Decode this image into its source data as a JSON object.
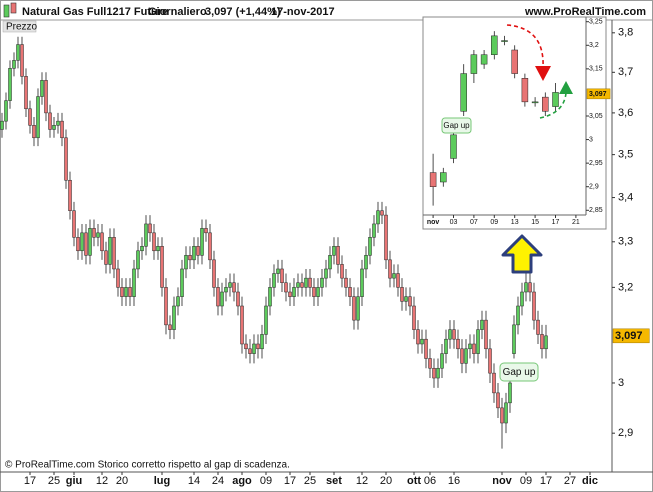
{
  "chart_data": [
    {
      "type": "candlestick",
      "title": "Natural Gas Full1217 Future",
      "period": "Giornaliero",
      "quote": "3,097 (+1,44%)",
      "date": "17-nov-2017",
      "source": "www.ProRealTime.com",
      "panel_label": "Prezzo",
      "footer": "© ProRealTime.com  Storico corretto rispetto al gap di scadenza.",
      "annotation": "Gap up",
      "log_scale": true,
      "grid": false,
      "up_color": "#5ccb5c",
      "down_color": "#e87474",
      "ylim": [
        2.825,
        3.833
      ],
      "yticks": [
        {
          "value": 3.8,
          "label": "3,8"
        },
        {
          "value": 3.7,
          "label": "3,7"
        },
        {
          "value": 3.6,
          "label": "3,6"
        },
        {
          "value": 3.5,
          "label": "3,5"
        },
        {
          "value": 3.4,
          "label": "3,4"
        },
        {
          "value": 3.3,
          "label": "3,3"
        },
        {
          "value": 3.2,
          "label": "3,2"
        },
        3,
        {
          "value": 2.9,
          "label": "2,9"
        }
      ],
      "last_price": {
        "value": 3.097,
        "label": "3,097"
      },
      "categories": [
        null,
        null,
        null,
        null,
        null,
        null,
        null,
        "17",
        null,
        null,
        null,
        null,
        null,
        "25",
        null,
        null,
        null,
        null,
        "giu",
        null,
        null,
        null,
        null,
        null,
        null,
        "12",
        null,
        null,
        null,
        null,
        "20",
        null,
        null,
        null,
        null,
        null,
        null,
        null,
        null,
        null,
        "lug",
        null,
        null,
        null,
        null,
        null,
        null,
        null,
        "14",
        null,
        null,
        null,
        null,
        null,
        "24",
        null,
        null,
        null,
        null,
        null,
        "ago",
        null,
        null,
        null,
        null,
        null,
        "09",
        null,
        null,
        null,
        null,
        null,
        "17",
        null,
        null,
        null,
        null,
        "25",
        null,
        null,
        null,
        null,
        null,
        "set",
        null,
        null,
        null,
        null,
        null,
        null,
        "12",
        null,
        null,
        null,
        null,
        null,
        "20",
        null,
        null,
        null,
        null,
        null,
        null,
        "ott",
        null,
        null,
        null,
        "06",
        null,
        null,
        null,
        null,
        null,
        "16",
        null,
        null,
        null,
        null,
        null,
        null,
        null,
        null,
        null,
        null,
        null,
        "nov",
        null,
        null,
        null,
        null,
        null,
        "09",
        null,
        null,
        null,
        null,
        "17",
        null,
        null,
        null,
        null,
        null,
        "27",
        null,
        null,
        null,
        null,
        "dic",
        null,
        null,
        null,
        null,
        null
      ],
      "open": [
        3.56,
        3.58,
        3.63,
        3.71,
        3.73,
        3.77,
        3.69,
        3.61,
        3.57,
        3.54,
        3.64,
        3.68,
        3.6,
        3.56,
        3.57,
        3.58,
        3.54,
        3.44,
        3.37,
        3.31,
        3.28,
        3.32,
        3.27,
        3.33,
        3.31,
        3.32,
        3.28,
        3.25,
        3.31,
        3.24,
        3.2,
        3.18,
        3.2,
        3.18,
        3.24,
        3.28,
        3.29,
        3.34,
        3.32,
        3.28,
        3.29,
        3.2,
        3.12,
        3.11,
        3.16,
        3.18,
        3.24,
        3.27,
        3.26,
        3.29,
        3.27,
        3.33,
        3.32,
        3.26,
        3.2,
        3.16,
        3.19,
        3.2,
        3.21,
        3.19,
        3.16,
        3.08,
        3.07,
        3.06,
        3.08,
        3.07,
        3.1,
        3.16,
        3.2,
        3.23,
        3.24,
        3.21,
        3.19,
        3.18,
        3.2,
        3.21,
        3.2,
        3.22,
        3.2,
        3.18,
        3.2,
        3.22,
        3.24,
        3.27,
        3.29,
        3.25,
        3.22,
        3.2,
        3.18,
        3.13,
        3.18,
        3.24,
        3.27,
        3.31,
        3.34,
        3.37,
        3.36,
        3.26,
        3.22,
        3.23,
        3.2,
        3.17,
        3.18,
        3.16,
        3.11,
        3.08,
        3.09,
        3.05,
        3.03,
        3.01,
        3.03,
        3.06,
        3.09,
        3.11,
        3.09,
        3.07,
        3.04,
        3.07,
        3.08,
        3.06,
        3.11,
        3.13,
        3.07,
        3.02,
        2.98,
        2.95,
        2.92,
        2.96,
        3.06,
        3.12,
        3.16,
        3.19,
        3.21,
        3.19,
        3.13,
        3.1,
        3.07,
        null,
        null,
        null,
        null,
        null,
        null,
        null,
        null,
        null,
        null,
        null,
        null,
        null,
        null,
        null,
        null
      ],
      "high": [
        3.6,
        3.65,
        3.73,
        3.75,
        3.79,
        3.79,
        3.71,
        3.63,
        3.59,
        3.66,
        3.7,
        3.7,
        3.62,
        3.59,
        3.6,
        3.6,
        3.56,
        3.46,
        3.39,
        3.33,
        3.34,
        3.34,
        3.35,
        3.35,
        3.34,
        3.34,
        3.3,
        3.33,
        3.33,
        3.26,
        3.22,
        3.22,
        3.22,
        3.26,
        3.3,
        3.31,
        3.36,
        3.36,
        3.34,
        3.31,
        3.31,
        3.22,
        3.14,
        3.18,
        3.2,
        3.26,
        3.29,
        3.29,
        3.31,
        3.31,
        3.35,
        3.35,
        3.34,
        3.28,
        3.22,
        3.21,
        3.22,
        3.23,
        3.23,
        3.21,
        3.18,
        3.1,
        3.09,
        3.1,
        3.1,
        3.12,
        3.18,
        3.22,
        3.25,
        3.26,
        3.26,
        3.23,
        3.21,
        3.22,
        3.23,
        3.23,
        3.24,
        3.24,
        3.22,
        3.22,
        3.24,
        3.26,
        3.29,
        3.31,
        3.31,
        3.27,
        3.24,
        3.22,
        3.2,
        3.2,
        3.26,
        3.29,
        3.33,
        3.36,
        3.39,
        3.39,
        3.38,
        3.28,
        3.25,
        3.25,
        3.22,
        3.2,
        3.2,
        3.18,
        3.13,
        3.11,
        3.11,
        3.07,
        3.05,
        3.05,
        3.08,
        3.11,
        3.13,
        3.13,
        3.11,
        3.09,
        3.09,
        3.1,
        3.1,
        3.13,
        3.15,
        3.15,
        3.09,
        3.04,
        3.0,
        2.97,
        2.98,
        3.02,
        3.14,
        3.18,
        3.21,
        3.23,
        3.23,
        3.21,
        3.15,
        3.12,
        3.12,
        null,
        null,
        null,
        null,
        null,
        null,
        null,
        null,
        null,
        null,
        null,
        null,
        null,
        null,
        null,
        null
      ],
      "low": [
        3.54,
        3.56,
        3.61,
        3.69,
        3.71,
        3.67,
        3.59,
        3.55,
        3.52,
        3.52,
        3.62,
        3.58,
        3.54,
        3.54,
        3.55,
        3.52,
        3.42,
        3.35,
        3.29,
        3.26,
        3.26,
        3.25,
        3.25,
        3.29,
        3.29,
        3.26,
        3.23,
        3.23,
        3.22,
        3.18,
        3.16,
        3.16,
        3.16,
        3.16,
        3.22,
        3.26,
        3.27,
        3.3,
        3.26,
        3.26,
        3.18,
        3.1,
        3.09,
        3.09,
        3.14,
        3.16,
        3.22,
        3.24,
        3.24,
        3.25,
        3.25,
        3.3,
        3.24,
        3.18,
        3.14,
        3.14,
        3.17,
        3.18,
        3.17,
        3.14,
        3.06,
        3.05,
        3.04,
        3.04,
        3.05,
        3.05,
        3.08,
        3.14,
        3.18,
        3.21,
        3.19,
        3.17,
        3.16,
        3.16,
        3.18,
        3.18,
        3.18,
        3.18,
        3.16,
        3.16,
        3.18,
        3.2,
        3.22,
        3.25,
        3.23,
        3.2,
        3.18,
        3.16,
        3.11,
        3.11,
        3.16,
        3.22,
        3.25,
        3.29,
        3.32,
        3.34,
        3.24,
        3.2,
        3.2,
        3.18,
        3.15,
        3.15,
        3.14,
        3.09,
        3.06,
        3.06,
        3.03,
        3.01,
        2.99,
        2.99,
        3.01,
        3.04,
        3.07,
        3.07,
        3.05,
        3.02,
        3.02,
        3.05,
        3.04,
        3.04,
        3.09,
        3.05,
        3.0,
        2.96,
        2.93,
        2.87,
        2.9,
        2.94,
        3.05,
        3.1,
        3.14,
        3.17,
        3.17,
        3.11,
        3.08,
        3.05,
        3.05,
        null,
        null,
        null,
        null,
        null,
        null,
        null,
        null,
        null,
        null,
        null,
        null,
        null,
        null,
        null,
        null
      ],
      "close": [
        3.58,
        3.63,
        3.71,
        3.73,
        3.77,
        3.69,
        3.61,
        3.57,
        3.54,
        3.64,
        3.68,
        3.6,
        3.56,
        3.57,
        3.58,
        3.54,
        3.44,
        3.37,
        3.31,
        3.28,
        3.32,
        3.27,
        3.33,
        3.31,
        3.32,
        3.28,
        3.25,
        3.31,
        3.24,
        3.2,
        3.18,
        3.2,
        3.18,
        3.24,
        3.28,
        3.29,
        3.34,
        3.32,
        3.28,
        3.29,
        3.2,
        3.12,
        3.11,
        3.16,
        3.18,
        3.24,
        3.27,
        3.26,
        3.29,
        3.27,
        3.33,
        3.32,
        3.26,
        3.2,
        3.16,
        3.19,
        3.2,
        3.21,
        3.19,
        3.16,
        3.08,
        3.07,
        3.06,
        3.08,
        3.07,
        3.1,
        3.16,
        3.2,
        3.23,
        3.24,
        3.21,
        3.19,
        3.18,
        3.2,
        3.21,
        3.2,
        3.22,
        3.2,
        3.18,
        3.2,
        3.22,
        3.24,
        3.27,
        3.29,
        3.25,
        3.22,
        3.2,
        3.18,
        3.13,
        3.18,
        3.24,
        3.27,
        3.31,
        3.34,
        3.37,
        3.36,
        3.26,
        3.22,
        3.23,
        3.2,
        3.17,
        3.18,
        3.16,
        3.11,
        3.08,
        3.09,
        3.05,
        3.03,
        3.01,
        3.03,
        3.06,
        3.09,
        3.11,
        3.09,
        3.07,
        3.04,
        3.07,
        3.08,
        3.06,
        3.11,
        3.13,
        3.07,
        3.02,
        2.98,
        2.95,
        2.92,
        2.96,
        3.0,
        3.12,
        3.16,
        3.19,
        3.21,
        3.19,
        3.13,
        3.1,
        3.07,
        3.097,
        null,
        null,
        null,
        null,
        null,
        null,
        null,
        null,
        null,
        null,
        null,
        null,
        null,
        null,
        null,
        null
      ]
    },
    {
      "type": "candlestick",
      "annotation": "Gap up",
      "log_scale": false,
      "grid": false,
      "up_color": "#5ccb5c",
      "down_color": "#e87474",
      "ylim": [
        2.84,
        3.26
      ],
      "yticks": [
        {
          "value": 3.25,
          "label": "3,25"
        },
        {
          "value": 3.2,
          "label": "3,2"
        },
        {
          "value": 3.15,
          "label": "3,15"
        },
        {
          "value": 3.05,
          "label": "3,05"
        },
        3,
        {
          "value": 2.95,
          "label": "2,95"
        },
        {
          "value": 2.9,
          "label": "2,9"
        },
        {
          "value": 2.85,
          "label": "2,85"
        }
      ],
      "last_price": {
        "value": 3.097,
        "label": "3,097"
      },
      "categories": [
        "nov",
        null,
        "03",
        null,
        "07",
        null,
        "09",
        null,
        "13",
        null,
        "15",
        null,
        "17",
        null,
        "21"
      ],
      "open": [
        2.93,
        2.91,
        2.96,
        3.06,
        3.14,
        3.16,
        3.18,
        3.21,
        3.19,
        3.13,
        3.08,
        3.09,
        3.07,
        null,
        null
      ],
      "high": [
        2.97,
        2.94,
        3.02,
        3.16,
        3.19,
        3.19,
        3.23,
        3.22,
        3.2,
        3.14,
        3.09,
        3.1,
        3.12,
        null,
        null
      ],
      "low": [
        2.86,
        2.9,
        2.95,
        3.05,
        3.12,
        3.15,
        3.17,
        3.2,
        3.13,
        3.07,
        3.07,
        3.05,
        3.06,
        null,
        null
      ],
      "close": [
        2.9,
        2.93,
        3.01,
        3.14,
        3.18,
        3.18,
        3.22,
        3.21,
        3.14,
        3.08,
        3.08,
        3.06,
        3.1,
        null,
        null
      ]
    }
  ]
}
